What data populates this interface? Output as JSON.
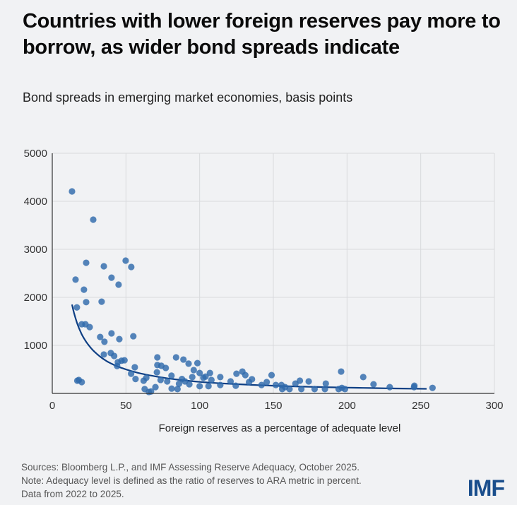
{
  "title": "Countries with lower foreign reserves pay more to borrow, as wider bond spreads indicate",
  "subtitle": "Bond spreads in emerging market economies, basis points",
  "notes": [
    "Sources: Bloomberg L.P., and IMF Assessing Reserve Adequacy, October 2025.",
    "Note: Adequacy level is defined as the ratio of reserves to ARA metric in percent.",
    "Data from 2022 to 2025."
  ],
  "logo": "IMF",
  "colors": {
    "point": "#2f6aac",
    "trend": "#0e3f84",
    "grid": "#d9dadd",
    "axis": "#333333"
  },
  "chart_data": {
    "type": "scatter",
    "title": "Countries with lower foreign reserves pay more to borrow, as wider bond spreads indicate",
    "subtitle": "Bond spreads in emerging market economies, basis points",
    "xlabel": "Foreign reserves as a percentage of adequate level",
    "ylabel": "",
    "xlim": [
      0,
      300
    ],
    "ylim": [
      0,
      5000
    ],
    "xticks": [
      0,
      50,
      100,
      150,
      200,
      250,
      300
    ],
    "yticks": [
      1000,
      2000,
      3000,
      4000,
      5000
    ],
    "xtick_labels": [
      "0",
      "50",
      "100",
      "150",
      "200",
      "250",
      "300"
    ],
    "ytick_labels": [
      "1000",
      "2000",
      "3000",
      "4000",
      "5000"
    ],
    "grid": true,
    "points": [
      [
        13.4,
        4206
      ],
      [
        27.8,
        3618
      ],
      [
        23,
        2720
      ],
      [
        35,
        2647
      ],
      [
        49.8,
        2765
      ],
      [
        53.6,
        2632
      ],
      [
        15.8,
        2370
      ],
      [
        40.2,
        2410
      ],
      [
        45,
        2265
      ],
      [
        21.5,
        2160
      ],
      [
        23,
        1900
      ],
      [
        33.5,
        1910
      ],
      [
        16.7,
        1790
      ],
      [
        20,
        1440
      ],
      [
        22.5,
        1440
      ],
      [
        25.4,
        1380
      ],
      [
        32.5,
        1175
      ],
      [
        40.2,
        1250
      ],
      [
        45.5,
        1130
      ],
      [
        55,
        1190
      ],
      [
        35.4,
        1075
      ],
      [
        35,
        810
      ],
      [
        39.7,
        840
      ],
      [
        42,
        780
      ],
      [
        44.5,
        650
      ],
      [
        47,
        680
      ],
      [
        49,
        690
      ],
      [
        44,
        570
      ],
      [
        56,
        545
      ],
      [
        53.5,
        410
      ],
      [
        56.5,
        300
      ],
      [
        17,
        265
      ],
      [
        18,
        280
      ],
      [
        20,
        235
      ],
      [
        62,
        265
      ],
      [
        63.8,
        325
      ],
      [
        62.7,
        90
      ],
      [
        65.5,
        30
      ],
      [
        67,
        40
      ],
      [
        71.3,
        750
      ],
      [
        71.3,
        590
      ],
      [
        74,
        575
      ],
      [
        71,
        440
      ],
      [
        73.5,
        280
      ],
      [
        70,
        130
      ],
      [
        77,
        530
      ],
      [
        80.9,
        370
      ],
      [
        81,
        100
      ],
      [
        85,
        90
      ],
      [
        84,
        750
      ],
      [
        89,
        705
      ],
      [
        92.5,
        620
      ],
      [
        98.5,
        630
      ],
      [
        96,
        485
      ],
      [
        100,
        425
      ],
      [
        102.5,
        325
      ],
      [
        107,
        425
      ],
      [
        114,
        340
      ],
      [
        95,
        340
      ],
      [
        104,
        350
      ],
      [
        108,
        280
      ],
      [
        114,
        175
      ],
      [
        106,
        150
      ],
      [
        93,
        190
      ],
      [
        100,
        150
      ],
      [
        90,
        250
      ],
      [
        88,
        300
      ],
      [
        86,
        200
      ],
      [
        78,
        250
      ],
      [
        121,
        250
      ],
      [
        124.5,
        160
      ],
      [
        125,
        410
      ],
      [
        129,
        455
      ],
      [
        131,
        380
      ],
      [
        133.5,
        235
      ],
      [
        135.5,
        295
      ],
      [
        142,
        175
      ],
      [
        145.5,
        235
      ],
      [
        148.8,
        380
      ],
      [
        151.7,
        175
      ],
      [
        155.5,
        175
      ],
      [
        156,
        90
      ],
      [
        158,
        130
      ],
      [
        161,
        90
      ],
      [
        165,
        205
      ],
      [
        168,
        265
      ],
      [
        169,
        90
      ],
      [
        174,
        250
      ],
      [
        178,
        90
      ],
      [
        185.6,
        205
      ],
      [
        185,
        90
      ],
      [
        196,
        455
      ],
      [
        196.5,
        115
      ],
      [
        194.3,
        90
      ],
      [
        198.6,
        90
      ],
      [
        211,
        340
      ],
      [
        218,
        190
      ],
      [
        229,
        130
      ],
      [
        245.7,
        160
      ],
      [
        245.5,
        130
      ],
      [
        258,
        115
      ]
    ],
    "trend_line": {
      "type": "power-fit",
      "points": [
        [
          13.4,
          1850
        ],
        [
          20,
          1230
        ],
        [
          30,
          830
        ],
        [
          40,
          620
        ],
        [
          50,
          500
        ],
        [
          70,
          355
        ],
        [
          100,
          240
        ],
        [
          150,
          160
        ],
        [
          200,
          120
        ],
        [
          254,
          95
        ]
      ]
    }
  }
}
